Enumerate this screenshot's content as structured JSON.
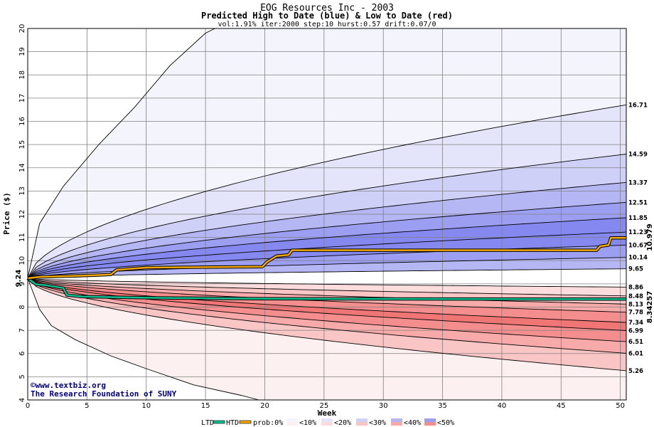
{
  "colors": {
    "b0": "#f4f4fd",
    "b1": "#e4e4fb",
    "b2": "#cfd0f8",
    "b3": "#b5b6f4",
    "b4": "#9c9ef1",
    "b5": "#8588ee",
    "r0": "#fdf0f0",
    "r1": "#fcdcdc",
    "r2": "#fac5c5",
    "r3": "#f8a9a9",
    "r4": "#f48e8e",
    "r5": "#f07676",
    "htd": "#f0a800",
    "ltd": "#10c090",
    "credit": "#000080",
    "grid": "#808080"
  },
  "chart_data": {
    "type": "area",
    "title": "EOG Resources Inc - 2003",
    "subtitle": "Predicted High to Date (blue) &  Low to Date (red)",
    "params": "vol:1.91% iter:2000 step:10 hurst:0.57 drift:0.07/0",
    "xlabel": "Week",
    "ylabel": "Price ($)",
    "xlim": [
      0,
      50.5
    ],
    "ylim": [
      4,
      20
    ],
    "xticks": [
      0,
      5,
      10,
      15,
      20,
      25,
      30,
      35,
      40,
      45,
      50
    ],
    "yticks": [
      4,
      5,
      6,
      7,
      8,
      9,
      10,
      11,
      12,
      13,
      14,
      15,
      16,
      17,
      18,
      19,
      20
    ],
    "grid": true,
    "start_price": 9.24,
    "start_label": "9.24",
    "upper_bands": [
      {
        "end": 16.71,
        "label": "16.71"
      },
      {
        "end": 14.59,
        "label": "14.59"
      },
      {
        "end": 13.37,
        "label": "13.37"
      },
      {
        "end": 12.51,
        "label": "12.51"
      },
      {
        "end": 11.85,
        "label": "11.85"
      },
      {
        "end": 11.23,
        "label": "11.23"
      },
      {
        "end": 10.67,
        "label": "10.67"
      },
      {
        "end": 10.14,
        "label": "10.14"
      },
      {
        "end": 9.65,
        "label": "9.65"
      }
    ],
    "lower_bands": [
      {
        "end": 8.86,
        "label": "8.86"
      },
      {
        "end": 8.48,
        "label": "8.48"
      },
      {
        "end": 8.13,
        "label": "8.13"
      },
      {
        "end": 7.78,
        "label": "7.78"
      },
      {
        "end": 7.34,
        "label": "7.34"
      },
      {
        "end": 6.99,
        "label": "6.99"
      },
      {
        "end": 6.51,
        "label": "6.51"
      },
      {
        "end": 6.01,
        "label": "6.01"
      },
      {
        "end": 5.26,
        "label": "5.26"
      }
    ],
    "outer_upper_curve": [
      [
        0,
        9.24
      ],
      [
        1,
        11.6
      ],
      [
        3,
        13.2
      ],
      [
        6,
        15.0
      ],
      [
        9,
        16.6
      ],
      [
        12,
        18.4
      ],
      [
        15,
        19.8
      ],
      [
        15.8,
        20.0
      ]
    ],
    "outer_lower_curve": [
      [
        0,
        9.24
      ],
      [
        1,
        7.9
      ],
      [
        2,
        7.2
      ],
      [
        4,
        6.6
      ],
      [
        7,
        5.9
      ],
      [
        10,
        5.35
      ],
      [
        14,
        4.65
      ],
      [
        18,
        4.2
      ],
      [
        19.5,
        4.0
      ]
    ],
    "htd_series": {
      "name": "HTD",
      "points": [
        [
          0,
          9.24
        ],
        [
          1,
          9.3
        ],
        [
          4,
          9.34
        ],
        [
          7,
          9.4
        ],
        [
          7.5,
          9.6
        ],
        [
          10,
          9.7
        ],
        [
          19.8,
          9.74
        ],
        [
          20.2,
          9.95
        ],
        [
          21,
          10.2
        ],
        [
          22,
          10.25
        ],
        [
          22.3,
          10.45
        ],
        [
          40,
          10.45
        ],
        [
          48,
          10.45
        ],
        [
          48.3,
          10.62
        ],
        [
          49,
          10.67
        ],
        [
          49.2,
          10.98
        ],
        [
          50.5,
          10.979
        ]
      ]
    },
    "ltd_series": {
      "name": "LTD",
      "points": [
        [
          0,
          9.24
        ],
        [
          0.7,
          8.98
        ],
        [
          1.5,
          8.94
        ],
        [
          3,
          8.82
        ],
        [
          3.3,
          8.52
        ],
        [
          4.5,
          8.45
        ],
        [
          10,
          8.4
        ],
        [
          20,
          8.36
        ],
        [
          35,
          8.35
        ],
        [
          50.5,
          8.3426
        ]
      ]
    },
    "end_values": {
      "htd": "10.979",
      "ltd": "8.34257"
    },
    "credit_lines": [
      "©www.textbiz.org",
      "The Research Foundation of SUNY"
    ],
    "legend": [
      "LTD",
      "HTD",
      "prob:0%",
      "<10%",
      "<20%",
      "<30%",
      "<40%",
      "<50%"
    ]
  }
}
